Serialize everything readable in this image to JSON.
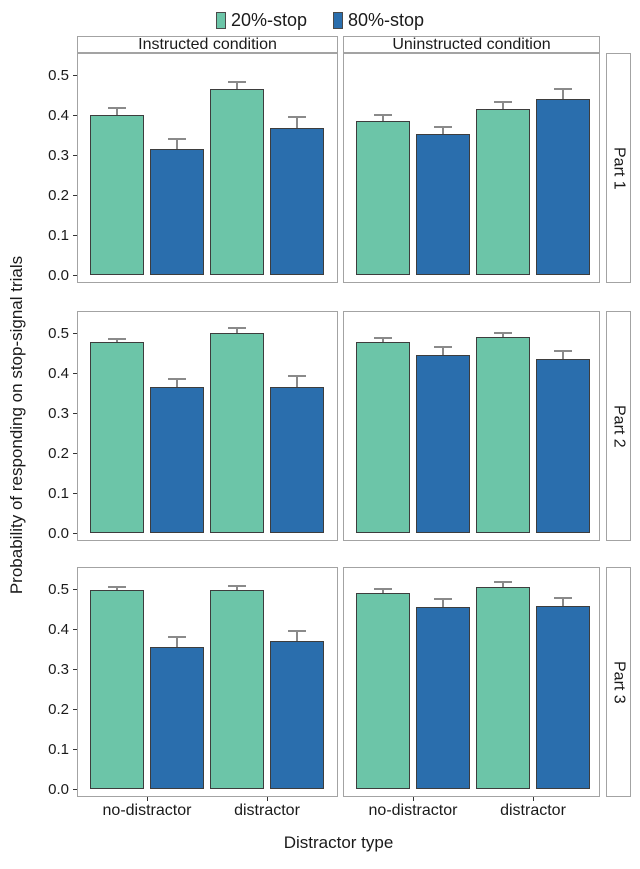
{
  "legend": {
    "items": [
      {
        "label": "20%-stop",
        "color": "#6CC5A8",
        "icon": "teal-key-swatch"
      },
      {
        "label": "80%-stop",
        "color": "#2A6EAD",
        "icon": "blue-key-swatch"
      }
    ]
  },
  "axes": {
    "x_title": "Distractor type",
    "y_title": "Probability of responding on stop-signal trials",
    "x_categories": [
      "no-distractor",
      "distractor"
    ],
    "y_tick_labels": [
      "0.0",
      "0.1",
      "0.2",
      "0.3",
      "0.4",
      "0.5"
    ]
  },
  "colors": {
    "teal": "#6CC5A8",
    "blue": "#2A6EAD",
    "panel_border": "#a3a3a3",
    "error_bar": "#8a8a8a",
    "text": "#1a1a1a"
  },
  "chart_data": {
    "type": "bar",
    "title": "",
    "xlabel": "Distractor type",
    "ylabel": "Probability of responding on stop-signal trials",
    "ylim": [
      0,
      0.5
    ],
    "y_ticks": [
      0,
      0.1,
      0.2,
      0.3,
      0.4,
      0.5
    ],
    "grid": false,
    "legend_position": "top",
    "categories": [
      "no-distractor",
      "distractor"
    ],
    "series_names": [
      "20%-stop",
      "80%-stop"
    ],
    "series_colors": {
      "20%-stop": "#6CC5A8",
      "80%-stop": "#2A6EAD"
    },
    "facet_columns": [
      "Instructed condition",
      "Uninstructed condition"
    ],
    "facet_rows": [
      "Part 1",
      "Part 2",
      "Part 3"
    ],
    "panels": [
      {
        "facet_row": "Part 1",
        "facet_col": "Instructed condition",
        "bars": [
          {
            "category": "no-distractor",
            "series": "20%-stop",
            "value": 0.4,
            "error": 0.02
          },
          {
            "category": "no-distractor",
            "series": "80%-stop",
            "value": 0.315,
            "error": 0.028
          },
          {
            "category": "distractor",
            "series": "20%-stop",
            "value": 0.465,
            "error": 0.021
          },
          {
            "category": "distractor",
            "series": "80%-stop",
            "value": 0.368,
            "error": 0.03
          }
        ]
      },
      {
        "facet_row": "Part 1",
        "facet_col": "Uninstructed condition",
        "bars": [
          {
            "category": "no-distractor",
            "series": "20%-stop",
            "value": 0.385,
            "error": 0.018
          },
          {
            "category": "no-distractor",
            "series": "80%-stop",
            "value": 0.352,
            "error": 0.021
          },
          {
            "category": "distractor",
            "series": "20%-stop",
            "value": 0.415,
            "error": 0.019
          },
          {
            "category": "distractor",
            "series": "80%-stop",
            "value": 0.44,
            "error": 0.027
          }
        ]
      },
      {
        "facet_row": "Part 2",
        "facet_col": "Instructed condition",
        "bars": [
          {
            "category": "no-distractor",
            "series": "20%-stop",
            "value": 0.478,
            "error": 0.01
          },
          {
            "category": "no-distractor",
            "series": "80%-stop",
            "value": 0.365,
            "error": 0.023
          },
          {
            "category": "distractor",
            "series": "20%-stop",
            "value": 0.5,
            "error": 0.015
          },
          {
            "category": "distractor",
            "series": "80%-stop",
            "value": 0.365,
            "error": 0.029
          }
        ]
      },
      {
        "facet_row": "Part 2",
        "facet_col": "Uninstructed condition",
        "bars": [
          {
            "category": "no-distractor",
            "series": "20%-stop",
            "value": 0.478,
            "error": 0.011
          },
          {
            "category": "no-distractor",
            "series": "80%-stop",
            "value": 0.446,
            "error": 0.021
          },
          {
            "category": "distractor",
            "series": "20%-stop",
            "value": 0.49,
            "error": 0.013
          },
          {
            "category": "distractor",
            "series": "80%-stop",
            "value": 0.436,
            "error": 0.022
          }
        ]
      },
      {
        "facet_row": "Part 3",
        "facet_col": "Instructed condition",
        "bars": [
          {
            "category": "no-distractor",
            "series": "20%-stop",
            "value": 0.498,
            "error": 0.009
          },
          {
            "category": "no-distractor",
            "series": "80%-stop",
            "value": 0.355,
            "error": 0.028
          },
          {
            "category": "distractor",
            "series": "20%-stop",
            "value": 0.497,
            "error": 0.013
          },
          {
            "category": "distractor",
            "series": "80%-stop",
            "value": 0.37,
            "error": 0.027
          }
        ]
      },
      {
        "facet_row": "Part 3",
        "facet_col": "Uninstructed condition",
        "bars": [
          {
            "category": "no-distractor",
            "series": "20%-stop",
            "value": 0.491,
            "error": 0.011
          },
          {
            "category": "no-distractor",
            "series": "80%-stop",
            "value": 0.455,
            "error": 0.022
          },
          {
            "category": "distractor",
            "series": "20%-stop",
            "value": 0.506,
            "error": 0.013
          },
          {
            "category": "distractor",
            "series": "80%-stop",
            "value": 0.457,
            "error": 0.023
          }
        ]
      }
    ]
  }
}
